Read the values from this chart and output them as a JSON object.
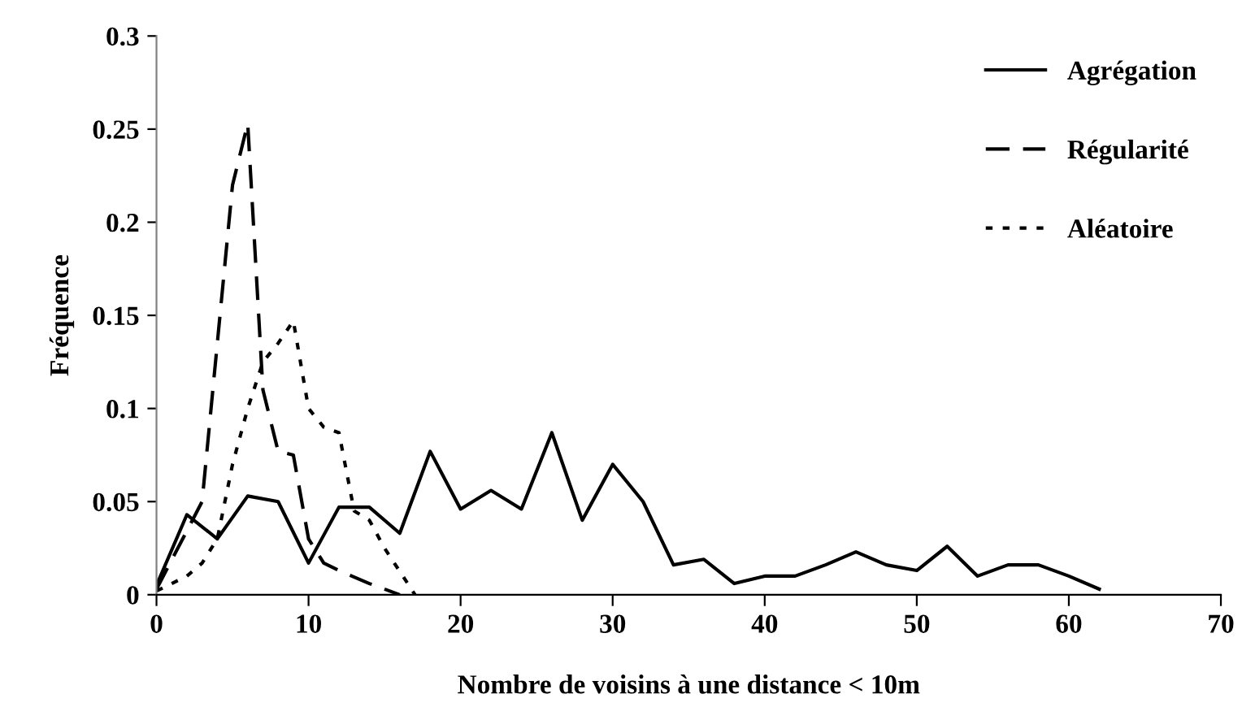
{
  "chart_data": {
    "type": "line",
    "xlabel": "Nombre de voisins à une distance < 10m",
    "ylabel": "Fréquence",
    "xlim": [
      0,
      70
    ],
    "xticks": [
      0,
      10,
      20,
      30,
      40,
      50,
      60,
      70
    ],
    "ylim": [
      0,
      0.3
    ],
    "yticks": [
      0,
      0.05,
      0.1,
      0.15,
      0.2,
      0.25,
      0.3
    ],
    "grid": false,
    "legend": "top right",
    "marker": "none",
    "series": [
      {
        "name": "Agrégation",
        "color": "#000000",
        "line_style": "solid",
        "x": [
          0,
          2,
          4,
          6,
          8,
          10,
          12,
          14,
          16,
          18,
          20,
          22,
          24,
          26,
          28,
          30,
          32,
          34,
          36,
          38,
          40,
          42,
          44,
          46,
          48,
          50,
          52,
          54,
          56,
          58,
          60,
          62
        ],
        "values": [
          0.005,
          0.043,
          0.03,
          0.053,
          0.05,
          0.017,
          0.047,
          0.047,
          0.033,
          0.077,
          0.046,
          0.056,
          0.046,
          0.087,
          0.04,
          0.07,
          0.05,
          0.016,
          0.019,
          0.006,
          0.01,
          0.01,
          0.016,
          0.023,
          0.016,
          0.013,
          0.026,
          0.01,
          0.016,
          0.016,
          0.01,
          0.003
        ]
      },
      {
        "name": "Régularité",
        "color": "#000000",
        "line_style": "dashed",
        "x": [
          0,
          3,
          5,
          6,
          7,
          8,
          9,
          10,
          11,
          12,
          14,
          16
        ],
        "values": [
          0.003,
          0.05,
          0.22,
          0.253,
          0.11,
          0.077,
          0.075,
          0.03,
          0.017,
          0.013,
          0.006,
          0.0
        ]
      },
      {
        "name": "Aléatoire",
        "color": "#000000",
        "line_style": "dotted",
        "x": [
          0,
          2,
          3,
          4,
          5,
          6,
          7,
          8,
          9,
          10,
          11,
          12,
          13,
          14,
          15,
          17
        ],
        "values": [
          0.002,
          0.01,
          0.017,
          0.03,
          0.07,
          0.1,
          0.125,
          0.135,
          0.147,
          0.1,
          0.09,
          0.087,
          0.045,
          0.04,
          0.025,
          0.0
        ]
      }
    ]
  }
}
